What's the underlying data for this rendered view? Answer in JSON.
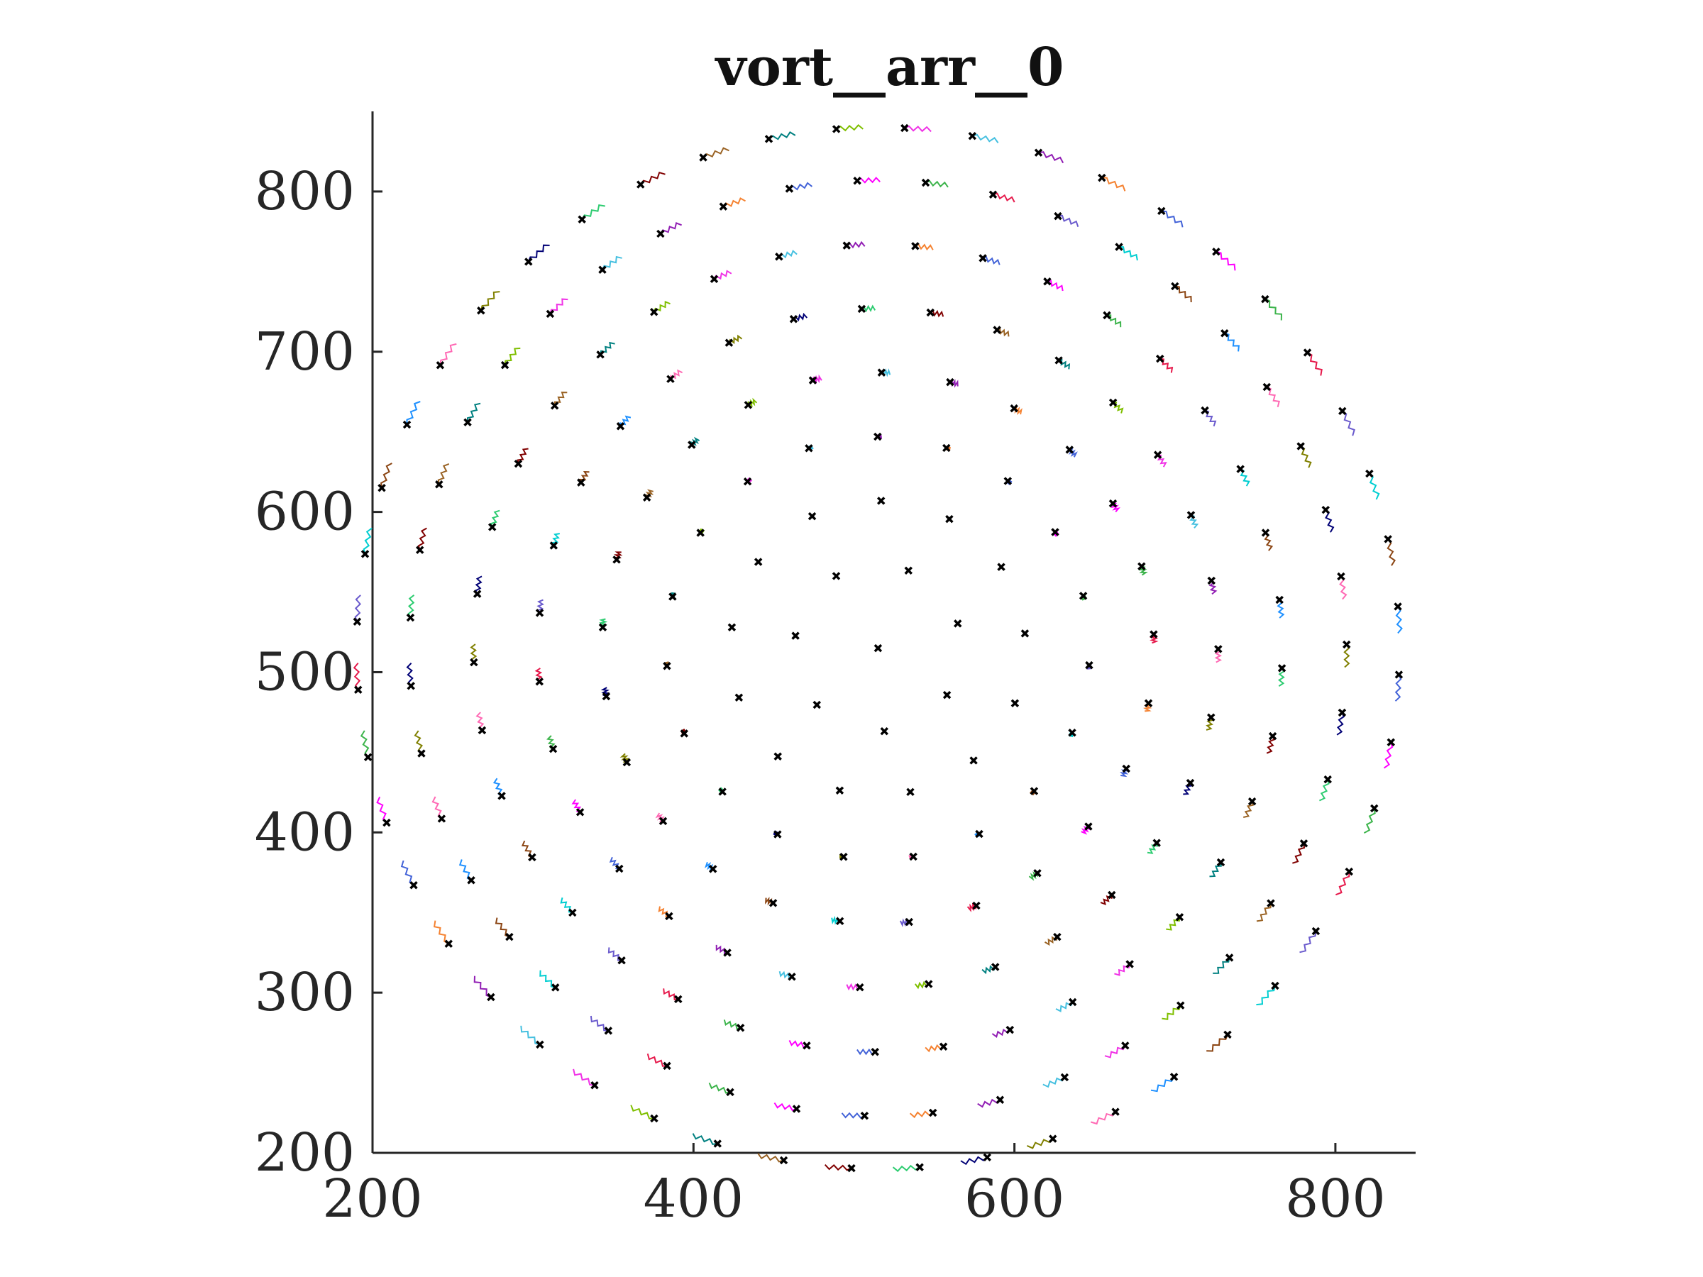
{
  "chart_data": {
    "type": "scatter",
    "title": "vort__arr__0",
    "xlabel": "",
    "ylabel": "",
    "xlim": [
      200,
      850
    ],
    "ylim": [
      200,
      850
    ],
    "x_ticks": [
      "200",
      "400",
      "600",
      "800"
    ],
    "y_ticks": [
      "200",
      "300",
      "400",
      "500",
      "600",
      "700",
      "800"
    ],
    "grid": false,
    "legend": "none",
    "point_color": "#000000",
    "trail_colors": [
      "#e6194b",
      "#3cb44b",
      "#ff00ff",
      "#4363d8",
      "#f58231",
      "#911eb4",
      "#46c0e0",
      "#f032e6",
      "#7fbf00",
      "#008080",
      "#9a6324",
      "#800000",
      "#2ecc71",
      "#000075",
      "#808000",
      "#ff69b4",
      "#1e90ff",
      "#8b4513",
      "#00ced1",
      "#6a5acd"
    ],
    "series": [
      {
        "name": "",
        "description_key": "vortex_positions",
        "rings": [
          {
            "radius": 52,
            "count": 7,
            "phase": 0.3
          },
          {
            "radius": 92,
            "count": 13,
            "phase": 0.1
          },
          {
            "radius": 132,
            "count": 19,
            "phase": 0.25
          },
          {
            "radius": 172,
            "count": 25,
            "phase": 0.05
          },
          {
            "radius": 212,
            "count": 31,
            "phase": 0.2
          },
          {
            "radius": 252,
            "count": 37,
            "phase": 0.12
          },
          {
            "radius": 292,
            "count": 43,
            "phase": 0.3
          },
          {
            "radius": 325,
            "count": 48,
            "phase": 0.08
          }
        ],
        "center": [
          515,
          515
        ],
        "core": [
          [
            515,
            515
          ]
        ]
      }
    ]
  }
}
